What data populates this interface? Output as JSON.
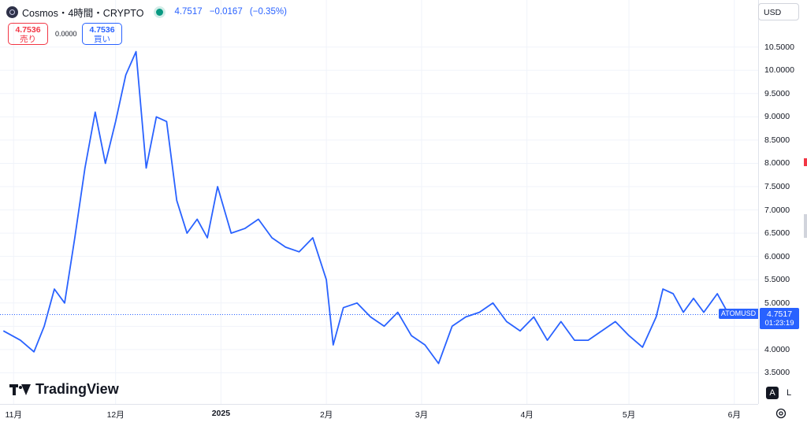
{
  "header": {
    "symbol": "Cosmos・4時間・CRYPTO",
    "last": "4.7517",
    "change": "−0.0167",
    "change_pct": "(−0.35%)"
  },
  "trade": {
    "sell_price": "4.7536",
    "sell_label": "売り",
    "spread": "0.0000",
    "buy_price": "4.7536",
    "buy_label": "買い"
  },
  "currency": "USD",
  "price_tag": {
    "symbol": "ATOMUSD",
    "price": "4.7517",
    "countdown": "01:23:19"
  },
  "brand": "TradingView",
  "scale_buttons": {
    "auto": "A",
    "log": "L"
  },
  "colors": {
    "line": "#2962ff",
    "up": "#089981",
    "down": "#f23645"
  },
  "chart_data": {
    "type": "line",
    "series": [
      {
        "x": [
          "2024-10-29",
          "2024-11-03",
          "2024-11-07",
          "2024-11-10",
          "2024-11-13",
          "2024-11-16",
          "2024-11-19",
          "2024-11-22",
          "2024-11-25",
          "2024-11-28",
          "2024-12-01",
          "2024-12-04",
          "2024-12-07",
          "2024-12-10",
          "2024-12-13",
          "2024-12-16",
          "2024-12-19",
          "2024-12-22",
          "2024-12-25",
          "2024-12-28",
          "2024-12-31",
          "2025-01-04",
          "2025-01-08",
          "2025-01-12",
          "2025-01-16",
          "2025-01-20",
          "2025-01-24",
          "2025-01-28",
          "2025-02-01",
          "2025-02-03",
          "2025-02-06",
          "2025-02-10",
          "2025-02-14",
          "2025-02-18",
          "2025-02-22",
          "2025-02-26",
          "2025-03-02",
          "2025-03-06",
          "2025-03-10",
          "2025-03-14",
          "2025-03-18",
          "2025-03-22",
          "2025-03-26",
          "2025-03-30",
          "2025-04-03",
          "2025-04-07",
          "2025-04-11",
          "2025-04-15",
          "2025-04-19",
          "2025-04-23",
          "2025-04-27",
          "2025-05-01",
          "2025-05-05",
          "2025-05-09",
          "2025-05-11",
          "2025-05-14",
          "2025-05-17",
          "2025-05-20",
          "2025-05-23",
          "2025-05-27",
          "2025-05-30"
        ],
        "values": [
          4.4,
          4.2,
          3.95,
          4.5,
          5.3,
          5.0,
          6.4,
          7.9,
          9.1,
          8.0,
          8.9,
          9.9,
          10.4,
          7.9,
          9.0,
          8.9,
          7.2,
          6.5,
          6.8,
          6.4,
          7.5,
          6.5,
          6.6,
          6.8,
          6.4,
          6.2,
          6.1,
          6.4,
          5.5,
          4.1,
          4.9,
          5.0,
          4.7,
          4.5,
          4.8,
          4.3,
          4.1,
          3.7,
          4.5,
          4.7,
          4.8,
          5.0,
          4.6,
          4.4,
          4.7,
          4.2,
          4.6,
          4.2,
          4.2,
          4.4,
          4.6,
          4.3,
          4.05,
          4.7,
          5.3,
          5.2,
          4.8,
          5.1,
          4.8,
          5.2,
          4.8
        ]
      }
    ],
    "ylim": [
      3.0,
      10.85
    ],
    "yticks": [
      "10.5000",
      "10.0000",
      "9.5000",
      "9.0000",
      "8.5000",
      "8.0000",
      "7.5000",
      "7.0000",
      "6.5000",
      "6.0000",
      "5.5000",
      "5.0000",
      "4.5000",
      "4.0000",
      "3.5000"
    ],
    "xticks": [
      {
        "label": "11月",
        "date": "2024-11-01",
        "bold": false
      },
      {
        "label": "12月",
        "date": "2024-12-01",
        "bold": false
      },
      {
        "label": "2025",
        "date": "2025-01-01",
        "bold": true
      },
      {
        "label": "2月",
        "date": "2025-02-01",
        "bold": false
      },
      {
        "label": "3月",
        "date": "2025-03-01",
        "bold": false
      },
      {
        "label": "4月",
        "date": "2025-04-01",
        "bold": false
      },
      {
        "label": "5月",
        "date": "2025-05-01",
        "bold": false
      },
      {
        "label": "6月",
        "date": "2025-06-01",
        "bold": false
      }
    ],
    "last_price": 4.7517,
    "grid": true
  }
}
